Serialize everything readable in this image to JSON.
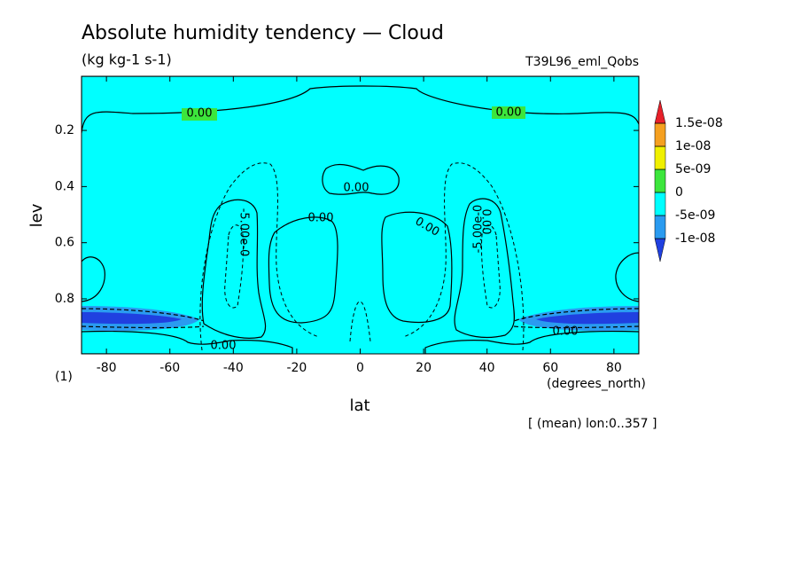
{
  "chart_data": {
    "type": "contour",
    "title": "Absolute humidity tendency — Cloud",
    "subtitle": "(kg kg-1 s-1)",
    "run_label": "T39L96_eml_Qobs",
    "x_label": "lat",
    "x_unit": "(degrees_north)",
    "y_label": "lev",
    "y_unit": "(1)",
    "note": "[ (mean) lon:0..357 ]",
    "xlim": [
      -87.86,
      87.86
    ],
    "xticks": [
      -80,
      -60,
      -40,
      -20,
      0,
      20,
      40,
      60,
      80
    ],
    "ylim": [
      0.007,
      0.996
    ],
    "yticks": [
      0.2,
      0.4,
      0.6,
      0.8
    ],
    "y_inverted": true,
    "colorbar": {
      "colors": [
        "#2040e0",
        "#2a9bf0",
        "#00ffff",
        "#3ce63c",
        "#f0f000",
        "#f5a020",
        "#e8202a"
      ],
      "levels": [
        {
          "value": -1e-08,
          "label": "-1e-08"
        },
        {
          "value": -5e-09,
          "label": "-5e-09"
        },
        0,
        {
          "value": 5e-09,
          "label": "5e-09"
        },
        {
          "value": 1e-08,
          "label": "1e-08"
        },
        {
          "value": 1.5e-08,
          "label": "1.5e-08"
        }
      ]
    },
    "contour_labels": [
      "0.00",
      "0.00",
      "0.00",
      "0.00",
      "0.00",
      "0.00",
      "-5.00e-0",
      "-5.00e-0",
      "0.00",
      "0.00"
    ]
  }
}
